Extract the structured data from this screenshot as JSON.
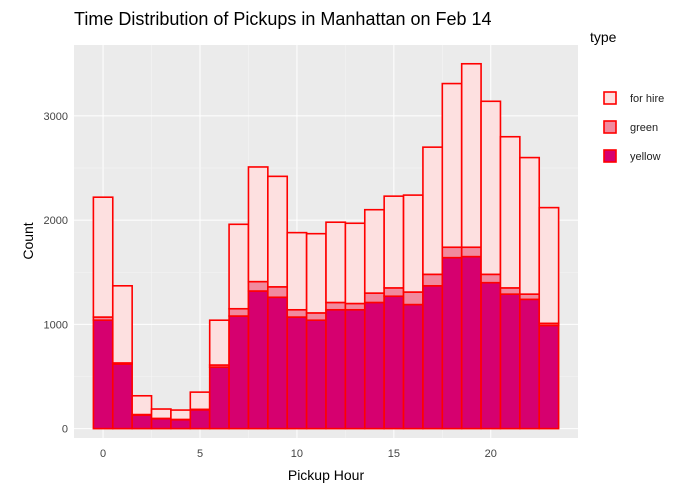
{
  "chart_data": {
    "type": "bar",
    "stacked": true,
    "title": "Time Distribution of Pickups in Manhattan on Feb 14",
    "xlabel": "Pickup Hour",
    "ylabel": "Count",
    "x": [
      0,
      1,
      2,
      3,
      4,
      5,
      6,
      7,
      8,
      9,
      10,
      11,
      12,
      13,
      14,
      15,
      16,
      17,
      18,
      19,
      20,
      21,
      22,
      23
    ],
    "xticks": [
      0,
      5,
      10,
      15,
      20
    ],
    "yticks": [
      0,
      1000,
      2000,
      3000
    ],
    "xlim": [
      -1.5,
      24.5
    ],
    "ylim": [
      -90,
      3680
    ],
    "grid": true,
    "legend": {
      "title": "type",
      "position": "right"
    },
    "series": [
      {
        "name": "yellow",
        "fill": "#d6006f",
        "values": [
          1040,
          620,
          130,
          95,
          85,
          180,
          590,
          1080,
          1320,
          1260,
          1070,
          1040,
          1140,
          1140,
          1210,
          1270,
          1190,
          1370,
          1640,
          1650,
          1400,
          1290,
          1240,
          990
        ]
      },
      {
        "name": "green",
        "fill": "#f18a9e",
        "values": [
          30,
          10,
          5,
          3,
          3,
          5,
          20,
          70,
          90,
          100,
          70,
          70,
          70,
          60,
          90,
          80,
          120,
          110,
          100,
          90,
          80,
          60,
          50,
          20
        ]
      },
      {
        "name": "for hire",
        "fill": "#fde0e0",
        "values": [
          1150,
          740,
          180,
          90,
          90,
          165,
          430,
          810,
          1100,
          1060,
          740,
          760,
          770,
          770,
          800,
          880,
          930,
          1220,
          1570,
          1760,
          1660,
          1450,
          1310,
          1110
        ]
      }
    ],
    "stroke": "#ff0000"
  }
}
